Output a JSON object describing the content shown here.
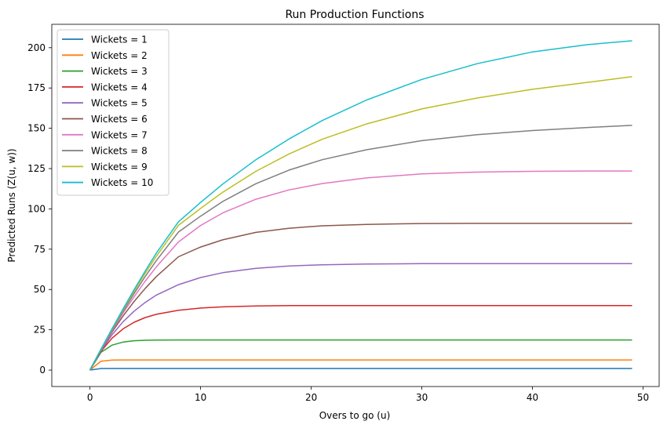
{
  "chart_data": {
    "type": "line",
    "title": "Run Production Functions",
    "xlabel": "Overs to go (u)",
    "ylabel": "Predicted Runs (Z(u, w))",
    "xlim": [
      -3.45,
      51.45
    ],
    "ylim": [
      -10.2,
      214.5
    ],
    "xticks": [
      0,
      10,
      20,
      30,
      40,
      50
    ],
    "yticks": [
      0,
      25,
      50,
      75,
      100,
      125,
      150,
      175,
      200
    ],
    "grid": false,
    "legend_position": "top-left",
    "x": [
      0,
      1,
      2,
      3,
      4,
      5,
      6,
      8,
      10,
      12,
      15,
      18,
      21,
      25,
      30,
      35,
      40,
      45,
      49
    ],
    "series": [
      {
        "name": "Wickets = 1",
        "color": "#1f77b4",
        "values": [
          0,
          1.0,
          1.0,
          1.0,
          1.0,
          1.0,
          1.0,
          1.0,
          1.0,
          1.0,
          1.0,
          1.0,
          1.0,
          1.0,
          1.0,
          1.0,
          1.0,
          1.0,
          1.0
        ]
      },
      {
        "name": "Wickets = 2",
        "color": "#ff7f0e",
        "values": [
          0,
          5.5,
          6.2,
          6.3,
          6.3,
          6.3,
          6.3,
          6.3,
          6.3,
          6.3,
          6.3,
          6.3,
          6.3,
          6.3,
          6.3,
          6.3,
          6.3,
          6.3,
          6.3
        ]
      },
      {
        "name": "Wickets = 3",
        "color": "#2ca02c",
        "values": [
          0,
          11.0,
          15.5,
          17.4,
          18.2,
          18.5,
          18.6,
          18.7,
          18.7,
          18.7,
          18.7,
          18.7,
          18.7,
          18.7,
          18.7,
          18.7,
          18.7,
          18.7,
          18.7
        ]
      },
      {
        "name": "Wickets = 4",
        "color": "#d62728",
        "values": [
          0,
          11.6,
          19.8,
          25.6,
          29.7,
          32.6,
          34.6,
          37.1,
          38.5,
          39.2,
          39.8,
          40.0,
          40.0,
          40.0,
          40.0,
          40.0,
          40.0,
          40.0,
          40.0
        ]
      },
      {
        "name": "Wickets = 5",
        "color": "#9467bd",
        "values": [
          0,
          12.0,
          21.9,
          30.0,
          36.6,
          42.0,
          46.5,
          53.0,
          57.4,
          60.4,
          63.1,
          64.6,
          65.3,
          65.8,
          66.0,
          66.0,
          66.0,
          66.0,
          66.0
        ]
      },
      {
        "name": "Wickets = 6",
        "color": "#8c564b",
        "values": [
          0,
          12.4,
          23.6,
          33.6,
          42.6,
          50.7,
          58.0,
          70.3,
          76.3,
          80.8,
          85.4,
          88.0,
          89.5,
          90.4,
          90.9,
          91.0,
          91.0,
          91.0,
          91.0
        ]
      },
      {
        "name": "Wickets = 7",
        "color": "#e377c2",
        "values": [
          0,
          12.6,
          24.4,
          35.4,
          45.6,
          55.2,
          64.0,
          79.5,
          89.7,
          97.5,
          106.0,
          111.8,
          115.7,
          119.2,
          121.7,
          122.8,
          123.3,
          123.5,
          123.5
        ]
      },
      {
        "name": "Wickets = 8",
        "color": "#7f7f7f",
        "values": [
          0,
          12.8,
          25.0,
          36.6,
          47.6,
          58.1,
          67.9,
          85.6,
          95.5,
          104.6,
          115.6,
          124.1,
          130.5,
          136.7,
          142.3,
          146.0,
          148.6,
          150.5,
          151.8
        ]
      },
      {
        "name": "Wickets = 9",
        "color": "#bcbd22",
        "values": [
          0,
          12.9,
          25.4,
          37.5,
          49.0,
          60.1,
          70.6,
          89.8,
          100.3,
          110.3,
          123.3,
          134.1,
          143.2,
          152.7,
          162.0,
          168.8,
          174.2,
          178.5,
          182.0
        ]
      },
      {
        "name": "Wickets = 10",
        "color": "#17becf",
        "values": [
          0,
          13.0,
          25.7,
          38.0,
          50.0,
          61.5,
          72.6,
          92.0,
          104.0,
          115.4,
          130.5,
          143.4,
          154.8,
          167.5,
          180.3,
          190.1,
          197.4,
          201.9,
          204.3
        ]
      }
    ]
  }
}
